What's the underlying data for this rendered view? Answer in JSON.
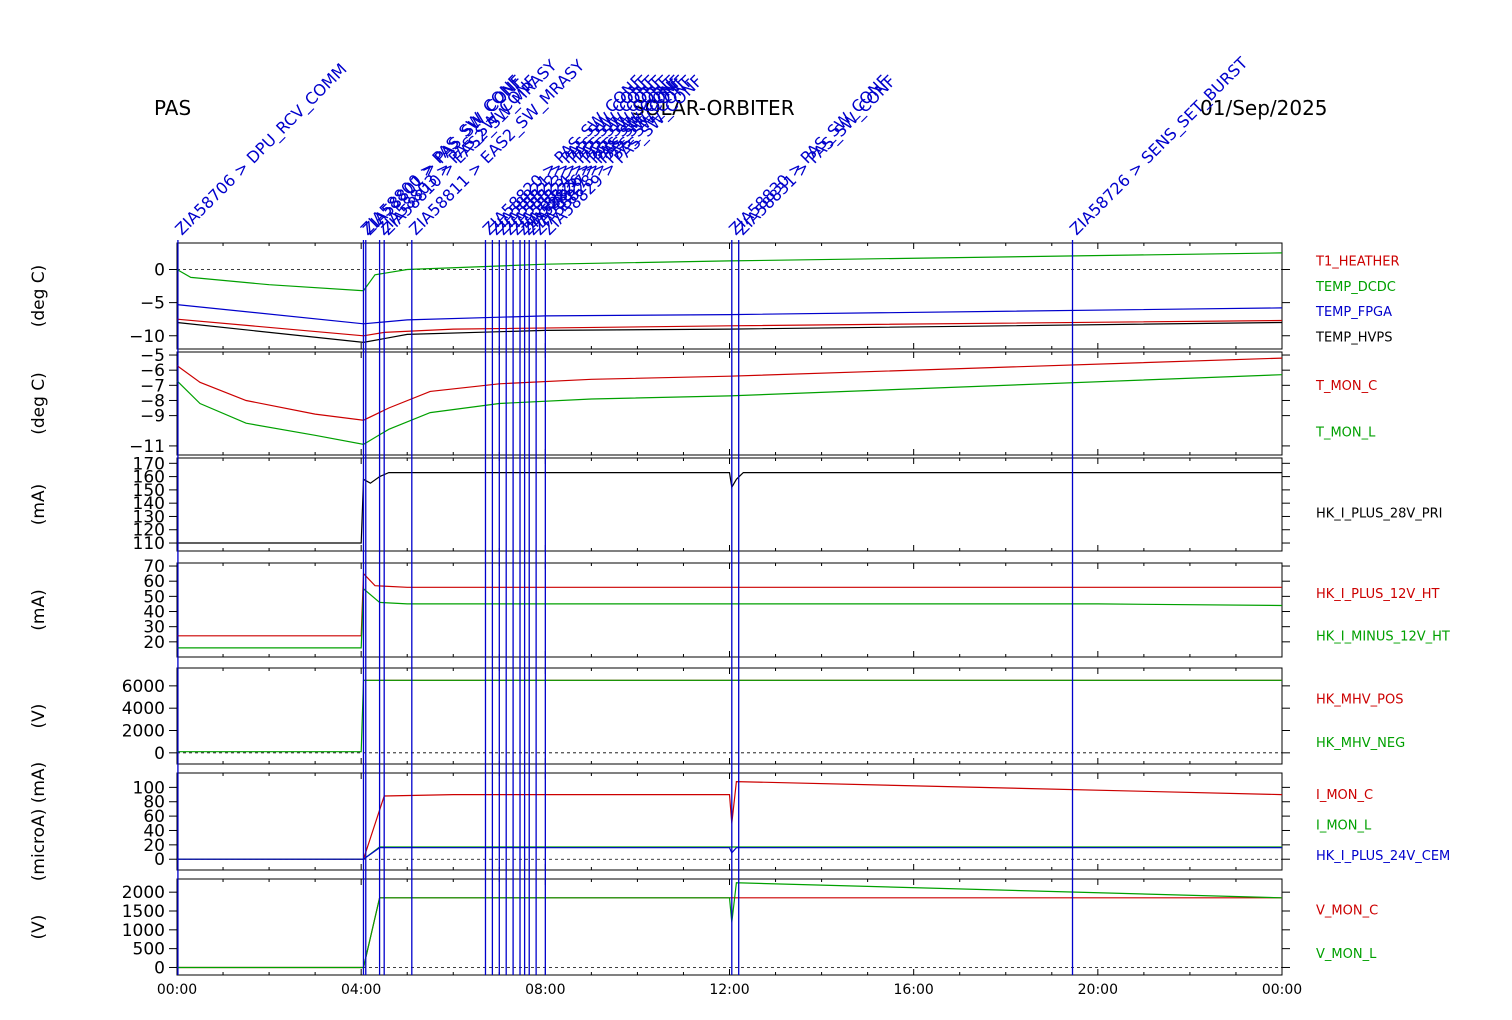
{
  "header": {
    "instrument": "PAS",
    "mission": "SOLAR-ORBITER",
    "date": "01/Sep/2025"
  },
  "colors": {
    "red": "#cc0000",
    "green": "#00a000",
    "blue": "#0000cc",
    "black": "#000000",
    "event": "#0000cc"
  },
  "x_ticks": [
    "00:00",
    "04:00",
    "08:00",
    "12:00",
    "16:00",
    "20:00",
    "00:00"
  ],
  "events": [
    {
      "t": 0.02,
      "label": "ZIA58706 > DPU_RCV_COMM"
    },
    {
      "t": 4.05,
      "label": "ZIA58800 > PAS_SW_CONF"
    },
    {
      "t": 4.1,
      "label": "ZIA58801 > PAS_SW_CONF"
    },
    {
      "t": 4.4,
      "label": "ZIA58803 > PAS_SW_CONF"
    },
    {
      "t": 4.5,
      "label": "ZIA58810 > EAS2_SW_MRASY"
    },
    {
      "t": 5.1,
      "label": "ZIA58811 > EAS2_SW_MRASY"
    },
    {
      "t": 6.7,
      "label": "ZIA58820 > PAS_SW_CONF"
    },
    {
      "t": 6.85,
      "label": "ZIA58821 > PAS_SW_CONF"
    },
    {
      "t": 7.0,
      "label": "ZIA58822 > PAS_SW_CONF"
    },
    {
      "t": 7.15,
      "label": "ZIA58823 > PAS_SW_CONF"
    },
    {
      "t": 7.3,
      "label": "ZIA58824 > PAS_SW_CONF"
    },
    {
      "t": 7.45,
      "label": "ZIA58825 > PAS_SW_CONF"
    },
    {
      "t": 7.55,
      "label": "ZIA58826 > PAS_SW_CONF"
    },
    {
      "t": 7.65,
      "label": "ZIA58827 > PAS_SW_CONF"
    },
    {
      "t": 7.8,
      "label": "ZIA58828 > PAS_SW_CONF"
    },
    {
      "t": 8.0,
      "label": "ZIA58829 > PAS_SW_CONF"
    },
    {
      "t": 12.05,
      "label": "ZIA58830 > PAS_SW_CONF"
    },
    {
      "t": 12.2,
      "label": "ZIA58831 > PAS_SW_CONF"
    },
    {
      "t": 19.45,
      "label": "ZIA58726 > SENS_SET_BURST"
    }
  ],
  "chart_data": [
    {
      "type": "line",
      "ylabel": "(deg C)",
      "ylim": [
        -12,
        4
      ],
      "yticks": [
        -10,
        -5,
        0
      ],
      "zero_line": true,
      "series": [
        {
          "name": "T1_HEATHER",
          "color": "#cc0000",
          "x": [
            0,
            4.05,
            4.5,
            6,
            12,
            24
          ],
          "values": [
            -7.5,
            -10,
            -9.5,
            -9,
            -8.5,
            -7.7
          ]
        },
        {
          "name": "TEMP_DCDC",
          "color": "#00a000",
          "x": [
            0,
            0.3,
            2,
            4.05,
            4.3,
            5,
            8,
            12,
            24
          ],
          "values": [
            0,
            -1.2,
            -2.3,
            -3.2,
            -0.8,
            0,
            0.8,
            1.3,
            2.5
          ]
        },
        {
          "name": "TEMP_FPGA",
          "color": "#0000cc",
          "x": [
            0,
            4.05,
            5,
            8,
            12,
            24
          ],
          "values": [
            -5.3,
            -8.2,
            -7.6,
            -7,
            -6.8,
            -5.8
          ]
        },
        {
          "name": "TEMP_HVPS",
          "color": "#000000",
          "x": [
            0,
            4.05,
            5,
            8,
            12,
            24
          ],
          "values": [
            -8,
            -11,
            -9.8,
            -9.2,
            -9,
            -8
          ]
        }
      ]
    },
    {
      "type": "line",
      "ylabel": "(deg C)",
      "ylim": [
        -11.6,
        -4.8
      ],
      "yticks": [
        -11,
        -9,
        -8,
        -7,
        -6,
        -5
      ],
      "series": [
        {
          "name": "T_MON_C",
          "color": "#cc0000",
          "x": [
            0,
            0.5,
            1.5,
            3,
            4.05,
            4.6,
            5.5,
            7,
            9,
            12,
            24
          ],
          "values": [
            -5.7,
            -6.8,
            -8,
            -8.9,
            -9.3,
            -8.5,
            -7.4,
            -6.9,
            -6.6,
            -6.4,
            -5.2
          ]
        },
        {
          "name": "T_MON_L",
          "color": "#00a000",
          "x": [
            0,
            0.5,
            1.5,
            3,
            4.05,
            4.6,
            5.5,
            7,
            9,
            12,
            24
          ],
          "values": [
            -6.7,
            -8.2,
            -9.5,
            -10.3,
            -10.9,
            -9.9,
            -8.8,
            -8.2,
            -7.9,
            -7.7,
            -6.3
          ]
        }
      ]
    },
    {
      "type": "line",
      "ylabel": "(mA)",
      "ylim": [
        104,
        174
      ],
      "yticks": [
        110,
        120,
        130,
        140,
        150,
        160,
        170
      ],
      "series": [
        {
          "name": "HK_I_PLUS_28V_PRI",
          "color": "#000000",
          "x": [
            0,
            4.0,
            4.05,
            4.2,
            4.4,
            4.6,
            12.0,
            12.05,
            12.15,
            12.3,
            24
          ],
          "values": [
            110,
            110,
            158,
            155,
            160,
            163,
            163,
            152,
            158,
            163,
            163
          ]
        }
      ]
    },
    {
      "type": "line",
      "ylabel": "(mA)",
      "ylim": [
        10,
        72
      ],
      "yticks": [
        20,
        30,
        40,
        50,
        60,
        70
      ],
      "series": [
        {
          "name": "HK_I_PLUS_12V_HT",
          "color": "#cc0000",
          "x": [
            0,
            4.0,
            4.05,
            4.3,
            5.0,
            24
          ],
          "values": [
            24,
            24,
            65,
            57,
            56,
            56
          ]
        },
        {
          "name": "HK_I_MINUS_12V_HT",
          "color": "#00a000",
          "x": [
            0,
            4.0,
            4.05,
            4.4,
            5.0,
            20,
            24
          ],
          "values": [
            16,
            16,
            55,
            46,
            45,
            45,
            44
          ]
        }
      ]
    },
    {
      "type": "line",
      "ylabel": "(V)",
      "ylim": [
        -1000,
        7600
      ],
      "yticks": [
        0,
        2000,
        4000,
        6000
      ],
      "zero_line": true,
      "series": [
        {
          "name": "HK_MHV_POS",
          "color": "#cc0000",
          "x": [
            4.05,
            24
          ],
          "values": [
            6500,
            6500
          ]
        },
        {
          "name": "HK_MHV_NEG",
          "color": "#00a000",
          "x": [
            0,
            4.0,
            4.05,
            24
          ],
          "values": [
            100,
            100,
            6500,
            6500
          ]
        }
      ]
    },
    {
      "type": "line",
      "ylabel": "(microA) (mA)",
      "ylim": [
        -15,
        120
      ],
      "yticks": [
        0,
        20,
        40,
        60,
        80,
        100
      ],
      "zero_line": true,
      "series": [
        {
          "name": "I_MON_C",
          "color": "#cc0000",
          "x": [
            0,
            4.05,
            4.5,
            6,
            12.0,
            12.05,
            12.15,
            24
          ],
          "values": [
            0,
            0,
            88,
            90,
            90,
            50,
            108,
            90
          ]
        },
        {
          "name": "I_MON_L",
          "color": "#00a000",
          "x": [
            0,
            4.05,
            4.4,
            24
          ],
          "values": [
            0,
            0,
            17,
            17
          ]
        },
        {
          "name": "HK_I_PLUS_24V_CEM",
          "color": "#0000cc",
          "x": [
            0,
            4.05,
            4.4,
            12.0,
            12.05,
            12.15,
            24
          ],
          "values": [
            0,
            0,
            16,
            16,
            9,
            16,
            16
          ]
        }
      ]
    },
    {
      "type": "line",
      "ylabel": "(V)",
      "ylim": [
        -200,
        2350
      ],
      "yticks": [
        0,
        500,
        1000,
        1500,
        2000
      ],
      "zero_line": true,
      "series": [
        {
          "name": "V_MON_C",
          "color": "#cc0000",
          "x": [
            0,
            4.05,
            4.4,
            24
          ],
          "values": [
            0,
            0,
            1850,
            1850
          ]
        },
        {
          "name": "V_MON_L",
          "color": "#00a000",
          "x": [
            0,
            4.05,
            4.4,
            12.0,
            12.05,
            12.15,
            24
          ],
          "values": [
            0,
            0,
            1850,
            1850,
            1200,
            2250,
            1850
          ]
        }
      ]
    }
  ]
}
